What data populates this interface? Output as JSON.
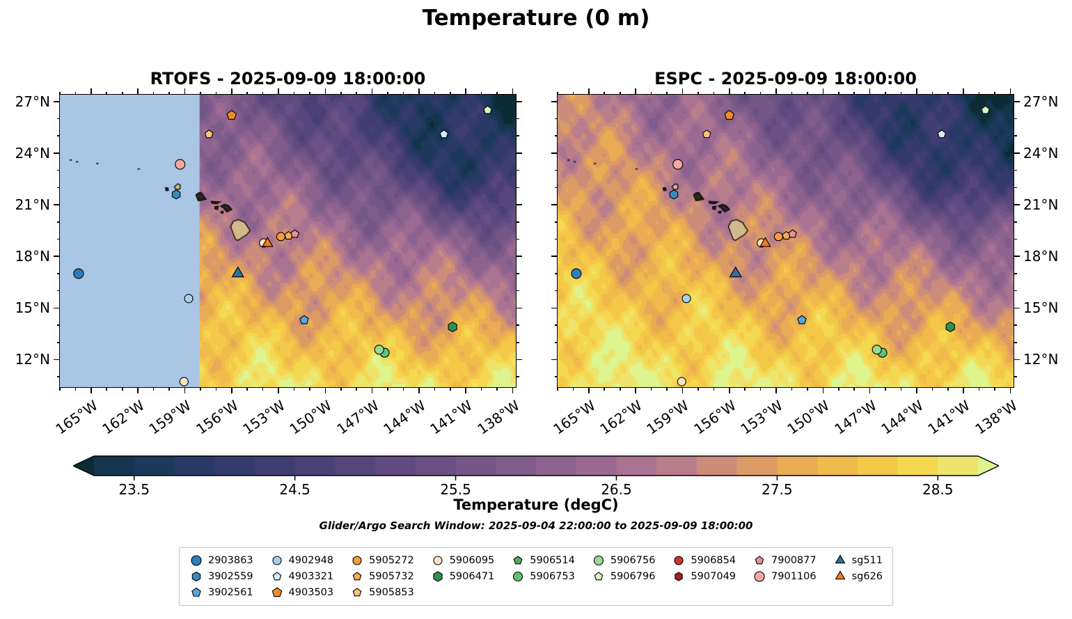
{
  "title": "Temperature (0 m)",
  "chart_data": {
    "type": "heatmap",
    "description": "Sea-surface temperature maps from two ocean models around Hawaii with Argo float and glider positions overlaid. Warm (orange/yellow, ~27-28.5 degC) water in the south and west, cold (dark navy, ~23.5 degC) pool in the northeast. RTOFS panel has a light-blue no-data mask west of about 158W.",
    "panels": [
      {
        "name": "RTOFS",
        "title": "RTOFS - 2025-09-09 18:00:00",
        "mask_lon_max": -158.05,
        "mask_color": "#a9c6e4",
        "west_bias": 0.0,
        "phase": 0.0
      },
      {
        "name": "ESPC",
        "title": "ESPC - 2025-09-09 18:00:00",
        "mask_lon_max": null,
        "mask_color": null,
        "west_bias": 0.5,
        "phase": 1.4
      }
    ],
    "axes": {
      "lon_min": -167.0,
      "lon_max": -137.8,
      "lat_min": 10.4,
      "lat_max": 27.4,
      "x_ticks": [
        {
          "lon": -165,
          "label": "165°W"
        },
        {
          "lon": -162,
          "label": "162°W"
        },
        {
          "lon": -159,
          "label": "159°W"
        },
        {
          "lon": -156,
          "label": "156°W"
        },
        {
          "lon": -153,
          "label": "153°W"
        },
        {
          "lon": -150,
          "label": "150°W"
        },
        {
          "lon": -147,
          "label": "147°W"
        },
        {
          "lon": -144,
          "label": "144°W"
        },
        {
          "lon": -141,
          "label": "141°W"
        },
        {
          "lon": -138,
          "label": "138°W"
        }
      ],
      "y_ticks": [
        {
          "lat": 12,
          "label": "12°N"
        },
        {
          "lat": 15,
          "label": "15°N"
        },
        {
          "lat": 18,
          "label": "18°N"
        },
        {
          "lat": 21,
          "label": "21°N"
        },
        {
          "lat": 24,
          "label": "24°N"
        },
        {
          "lat": 27,
          "label": "27°N"
        }
      ]
    },
    "colorbar": {
      "label": "Temperature (degC)",
      "vmin": 23.25,
      "vmax": 28.75,
      "step": 0.25,
      "ticks": [
        23.5,
        24.5,
        25.5,
        26.5,
        27.5,
        28.5
      ]
    },
    "colormap_stops": [
      [
        23.0,
        "#0c2d36"
      ],
      [
        23.5,
        "#163755"
      ],
      [
        24.0,
        "#2e3a6a"
      ],
      [
        24.5,
        "#453e74"
      ],
      [
        25.0,
        "#5a487d"
      ],
      [
        25.5,
        "#6f5385"
      ],
      [
        26.0,
        "#855f8c"
      ],
      [
        26.4,
        "#9c6b92"
      ],
      [
        26.8,
        "#b47a90"
      ],
      [
        27.1,
        "#ca8a7c"
      ],
      [
        27.4,
        "#de9d63"
      ],
      [
        27.7,
        "#ecb04f"
      ],
      [
        28.0,
        "#f3c247"
      ],
      [
        28.3,
        "#f6d44b"
      ],
      [
        28.6,
        "#f0e369"
      ],
      [
        29.0,
        "#def48e"
      ]
    ],
    "subtitle": "Glider/Argo Search Window: 2025-09-04 22:00:00 to 2025-09-09 18:00:00",
    "floats": [
      {
        "id": "2903863",
        "marker": "circle",
        "color": "#2e7ebc",
        "size": 7,
        "points": [
          [
            -165.8,
            17.0
          ]
        ]
      },
      {
        "id": "3902559",
        "marker": "hexagon",
        "color": "#3a8ac2",
        "size": 6.5,
        "points": [
          [
            -159.55,
            21.6
          ]
        ]
      },
      {
        "id": "3902561",
        "marker": "pentagon",
        "color": "#57a7d8",
        "size": 6.5,
        "points": [
          [
            -151.35,
            14.3
          ]
        ]
      },
      {
        "id": "4902948",
        "marker": "circle",
        "color": "#a8d0ea",
        "size": 6,
        "points": [
          [
            -158.75,
            15.55
          ]
        ]
      },
      {
        "id": "4903321",
        "marker": "pentagon",
        "color": "#d4ecf9",
        "size": 6,
        "points": [
          [
            -142.4,
            25.1
          ]
        ]
      },
      {
        "id": "4903503",
        "marker": "pentagon",
        "color": "#f08b27",
        "size": 7,
        "points": [
          [
            -156.0,
            26.2
          ]
        ]
      },
      {
        "id": "5905272",
        "marker": "circle",
        "color": "#f49b3a",
        "size": 6,
        "points": [
          [
            -152.85,
            19.15
          ]
        ]
      },
      {
        "id": "5905732",
        "marker": "pentagon",
        "color": "#f6ac54",
        "size": 6,
        "points": [
          [
            -152.35,
            19.2
          ]
        ]
      },
      {
        "id": "5905853",
        "marker": "pentagon",
        "color": "#f9c480",
        "size": 6,
        "points": [
          [
            -157.45,
            25.1
          ]
        ]
      },
      {
        "id": "5906095",
        "marker": "circle",
        "color": "#fce3c3",
        "size": 6,
        "points": [
          [
            -153.95,
            18.78
          ],
          [
            -159.05,
            10.72
          ]
        ]
      },
      {
        "id": "5906471",
        "marker": "hexagon",
        "color": "#2e9150",
        "size": 7,
        "points": [
          [
            -141.85,
            13.9
          ]
        ]
      },
      {
        "id": "5906514",
        "marker": "pentagon",
        "color": "#4fae5c",
        "size": 6,
        "points": []
      },
      {
        "id": "5906753",
        "marker": "circle",
        "color": "#5fc371",
        "size": 6.5,
        "points": [
          [
            -146.2,
            12.4
          ]
        ]
      },
      {
        "id": "5906756",
        "marker": "circle",
        "color": "#97da97",
        "size": 6.5,
        "points": [
          [
            -146.55,
            12.58
          ]
        ]
      },
      {
        "id": "5906796",
        "marker": "pentagon",
        "color": "#dcf5bd",
        "size": 6,
        "points": [
          [
            -139.6,
            26.5
          ]
        ]
      },
      {
        "id": "5906854",
        "marker": "circle",
        "color": "#d13130",
        "size": 6,
        "points": []
      },
      {
        "id": "5907049",
        "marker": "hexagon",
        "color": "#a32126",
        "size": 6,
        "points": []
      },
      {
        "id": "7900877",
        "marker": "pentagon",
        "color": "#e2929c",
        "size": 6,
        "points": [
          [
            -151.95,
            19.3
          ]
        ]
      },
      {
        "id": "7901106",
        "marker": "circle",
        "color": "#f2a9a4",
        "size": 7,
        "points": [
          [
            -159.3,
            23.35
          ]
        ]
      },
      {
        "id": "sg511",
        "marker": "triangle",
        "color": "#2d6f9e",
        "size": 9.5,
        "points": [
          [
            -155.6,
            17.0
          ]
        ]
      },
      {
        "id": "sg626",
        "marker": "triangle",
        "color": "#f07d1d",
        "size": 8.5,
        "points": [
          [
            -153.7,
            18.75
          ]
        ]
      }
    ],
    "legend_columns": [
      [
        "2903863",
        "3902559",
        "3902561"
      ],
      [
        "4902948",
        "4903321",
        "4903503"
      ],
      [
        "5905272",
        "5905732",
        "5905853"
      ],
      [
        "5906095",
        "5906471"
      ],
      [
        "5906514",
        "5906753"
      ],
      [
        "5906756",
        "5906796"
      ],
      [
        "5906854",
        "5907049"
      ],
      [
        "7900877",
        "7901106"
      ],
      [
        "sg511",
        "sg626"
      ]
    ],
    "islands": [
      {
        "name": "hawaii",
        "fill": "#d3b88c",
        "pts": [
          [
            -155.88,
            20.05
          ],
          [
            -155.55,
            20.14
          ],
          [
            -155.15,
            19.97
          ],
          [
            -154.82,
            19.5
          ],
          [
            -155.02,
            19.27
          ],
          [
            -155.35,
            19.08
          ],
          [
            -155.6,
            18.93
          ],
          [
            -155.75,
            18.99
          ],
          [
            -155.93,
            19.4
          ],
          [
            -156.06,
            19.74
          ]
        ]
      },
      {
        "name": "maui",
        "fill": "#2a2620",
        "pts": [
          [
            -156.7,
            20.92
          ],
          [
            -156.45,
            21.03
          ],
          [
            -156.2,
            20.95
          ],
          [
            -155.99,
            20.73
          ],
          [
            -156.3,
            20.58
          ],
          [
            -156.5,
            20.8
          ]
        ]
      },
      {
        "name": "kahoolawe",
        "fill": "#2a2620",
        "pts": [
          [
            -156.69,
            20.6
          ],
          [
            -156.54,
            20.62
          ],
          [
            -156.56,
            20.51
          ],
          [
            -156.69,
            20.53
          ]
        ]
      },
      {
        "name": "lanai",
        "fill": "#2a2620",
        "pts": [
          [
            -157.07,
            20.89
          ],
          [
            -156.86,
            20.92
          ],
          [
            -156.9,
            20.72
          ],
          [
            -157.06,
            20.76
          ]
        ]
      },
      {
        "name": "molokai",
        "fill": "#2a2620",
        "pts": [
          [
            -157.3,
            21.2
          ],
          [
            -156.73,
            21.17
          ],
          [
            -156.95,
            21.06
          ],
          [
            -157.27,
            21.09
          ]
        ]
      },
      {
        "name": "oahu",
        "fill": "#2a2620",
        "pts": [
          [
            -158.29,
            21.57
          ],
          [
            -158.12,
            21.7
          ],
          [
            -157.96,
            21.72
          ],
          [
            -157.64,
            21.32
          ],
          [
            -157.92,
            21.26
          ],
          [
            -158.14,
            21.24
          ]
        ]
      },
      {
        "name": "kauai",
        "fill": "#d3b88c",
        "pts": [
          [
            -159.67,
            22.05
          ],
          [
            -159.45,
            22.22
          ],
          [
            -159.29,
            22.15
          ],
          [
            -159.3,
            21.93
          ],
          [
            -159.55,
            21.87
          ]
        ]
      },
      {
        "name": "niihau",
        "fill": "#2a2620",
        "pts": [
          [
            -160.24,
            21.98
          ],
          [
            -160.08,
            21.99
          ],
          [
            -160.05,
            21.84
          ],
          [
            -160.2,
            21.82
          ]
        ]
      }
    ],
    "island_specks": [
      [
        -166.3,
        23.6
      ],
      [
        -165.9,
        23.5
      ],
      [
        -164.6,
        23.4
      ],
      [
        -161.95,
        23.08
      ]
    ]
  }
}
